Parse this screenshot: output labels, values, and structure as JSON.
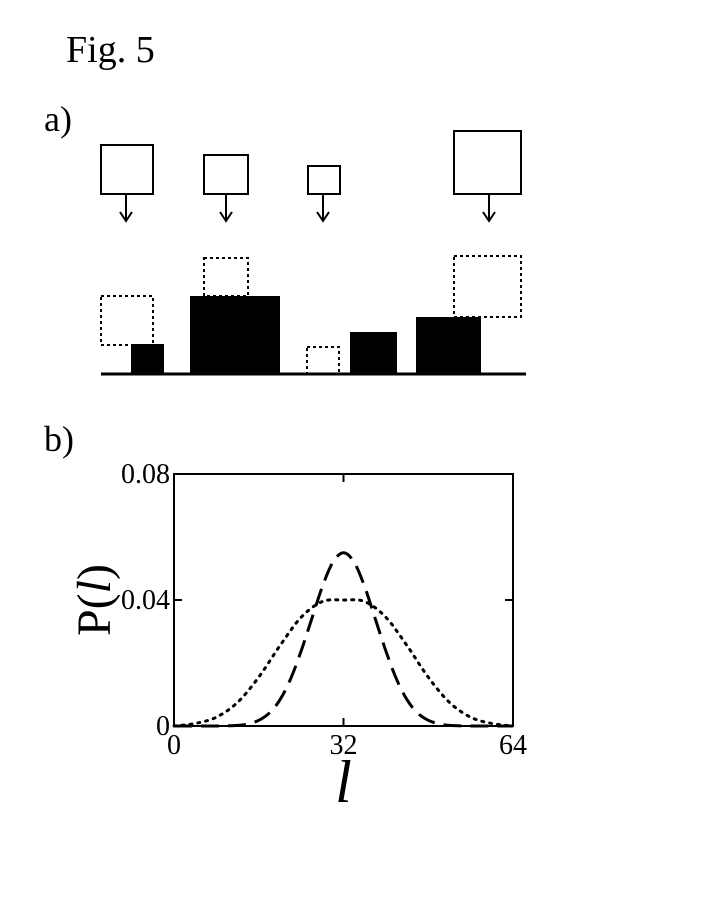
{
  "figure": {
    "title": "Fig. 5",
    "panel_a_label": "a)",
    "panel_b_label": "b)"
  },
  "chart_data": {
    "type": "line",
    "xlabel": "l",
    "ylabel": "P(l)",
    "xlim": [
      0,
      64
    ],
    "ylim": [
      0,
      0.08
    ],
    "x_ticks": [
      {
        "value": 0,
        "label": "0"
      },
      {
        "value": 32,
        "label": "32"
      },
      {
        "value": 64,
        "label": "64"
      }
    ],
    "y_ticks": [
      {
        "value": 0,
        "label": "0"
      },
      {
        "value": 0.04,
        "label": "0.04"
      },
      {
        "value": 0.08,
        "label": "0.08"
      }
    ],
    "grid": false,
    "series": [
      {
        "style": "dashed",
        "x": [
          0,
          4,
          8,
          12,
          14,
          16,
          18,
          20,
          22,
          24,
          26,
          28,
          30,
          32,
          34,
          36,
          38,
          40,
          42,
          44,
          46,
          48,
          50,
          52,
          56,
          60,
          64
        ],
        "values": [
          0.0,
          0.0,
          0.0,
          0.0002,
          0.0007,
          0.0018,
          0.0041,
          0.0083,
          0.0149,
          0.0238,
          0.034,
          0.0442,
          0.052,
          0.055,
          0.052,
          0.0442,
          0.034,
          0.0238,
          0.0149,
          0.0083,
          0.0041,
          0.0018,
          0.0007,
          0.0002,
          0.0,
          0.0,
          0.0
        ]
      },
      {
        "style": "dotted",
        "x": [
          0,
          4,
          8,
          12,
          16,
          20,
          24,
          28,
          32,
          36,
          40,
          44,
          48,
          52,
          56,
          60,
          64
        ],
        "values": [
          0.0,
          0.0008,
          0.0028,
          0.0075,
          0.0155,
          0.0255,
          0.0345,
          0.0395,
          0.04,
          0.0395,
          0.0345,
          0.0255,
          0.0155,
          0.0075,
          0.0028,
          0.0008,
          0.0
        ]
      }
    ]
  }
}
